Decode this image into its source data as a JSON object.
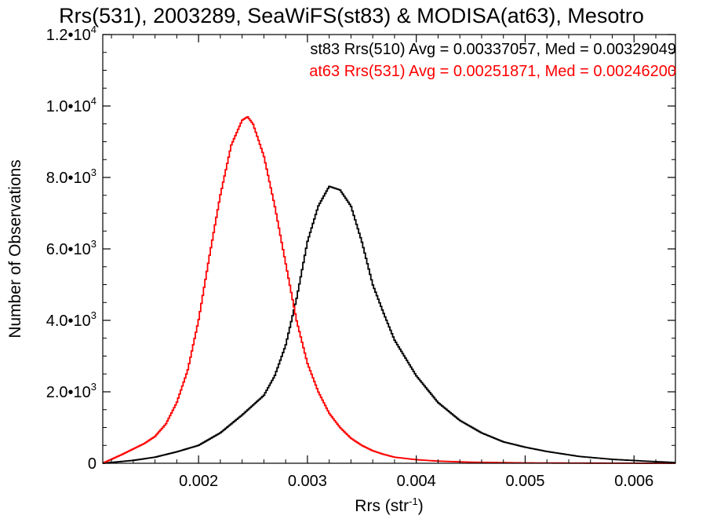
{
  "chart_data": {
    "type": "line",
    "title": "Rrs(531), 2003289, SeaWiFS(st83) & MODISA(at63), Mesotro",
    "xlabel": "Rrs (str",
    "xlabel_sup": "-1",
    "xlabel_close": ")",
    "ylabel": "Number of Observations",
    "xlim": [
      0.00112,
      0.00638
    ],
    "ylim": [
      0,
      12000
    ],
    "x_ticks": [
      {
        "value": 0.002,
        "label": "0.002"
      },
      {
        "value": 0.003,
        "label": "0.003"
      },
      {
        "value": 0.004,
        "label": "0.004"
      },
      {
        "value": 0.005,
        "label": "0.005"
      },
      {
        "value": 0.006,
        "label": "0.006"
      }
    ],
    "y_ticks": [
      {
        "value": 0,
        "label": "0",
        "exp": ""
      },
      {
        "value": 2000,
        "label": "2.0•10",
        "exp": "3"
      },
      {
        "value": 4000,
        "label": "4.0•10",
        "exp": "3"
      },
      {
        "value": 6000,
        "label": "6.0•10",
        "exp": "3"
      },
      {
        "value": 8000,
        "label": "8.0•10",
        "exp": "3"
      },
      {
        "value": 10000,
        "label": "1.0•10",
        "exp": "4"
      },
      {
        "value": 12000,
        "label": "1.2•10",
        "exp": "4"
      }
    ],
    "legend": [
      {
        "text": "st83 Rrs(510) Avg = 0.00337057, Med = 0.00329049",
        "color": "#000000"
      },
      {
        "text": "at63 Rrs(531) Avg = 0.00251871, Med = 0.00246200",
        "color": "#ff0000"
      }
    ],
    "legend_placement": "top-right",
    "grid": false,
    "series": [
      {
        "color": "#000000",
        "x": [
          0.00112,
          0.0014,
          0.0016,
          0.0018,
          0.002,
          0.0022,
          0.0024,
          0.0026,
          0.0027,
          0.0028,
          0.0029,
          0.003,
          0.0031,
          0.0032,
          0.0033,
          0.0034,
          0.0035,
          0.0036,
          0.0037,
          0.0038,
          0.004,
          0.0042,
          0.0044,
          0.0046,
          0.0048,
          0.005,
          0.0052,
          0.0055,
          0.0058,
          0.0061,
          0.00638
        ],
        "y": [
          0,
          80,
          170,
          320,
          500,
          850,
          1350,
          1900,
          2450,
          3300,
          4600,
          6200,
          7200,
          7750,
          7650,
          7200,
          6200,
          5000,
          4200,
          3450,
          2450,
          1700,
          1200,
          850,
          600,
          450,
          330,
          190,
          110,
          60,
          20
        ]
      },
      {
        "color": "#ff0000",
        "x": [
          0.00112,
          0.0013,
          0.0015,
          0.0016,
          0.0017,
          0.0018,
          0.0019,
          0.002,
          0.0021,
          0.0022,
          0.0023,
          0.0024,
          0.00245,
          0.0025,
          0.0026,
          0.0027,
          0.0028,
          0.0029,
          0.003,
          0.0031,
          0.0032,
          0.0033,
          0.0034,
          0.0035,
          0.0036,
          0.0037,
          0.0038,
          0.004,
          0.0042,
          0.0045,
          0.005,
          0.0055,
          0.006,
          0.00638
        ],
        "y": [
          0,
          250,
          550,
          750,
          1100,
          1700,
          2600,
          4000,
          5800,
          7500,
          8900,
          9600,
          9700,
          9500,
          8600,
          7200,
          5600,
          4000,
          2800,
          2000,
          1400,
          1000,
          700,
          500,
          350,
          250,
          170,
          100,
          60,
          30,
          10,
          5,
          2,
          0
        ]
      }
    ]
  }
}
